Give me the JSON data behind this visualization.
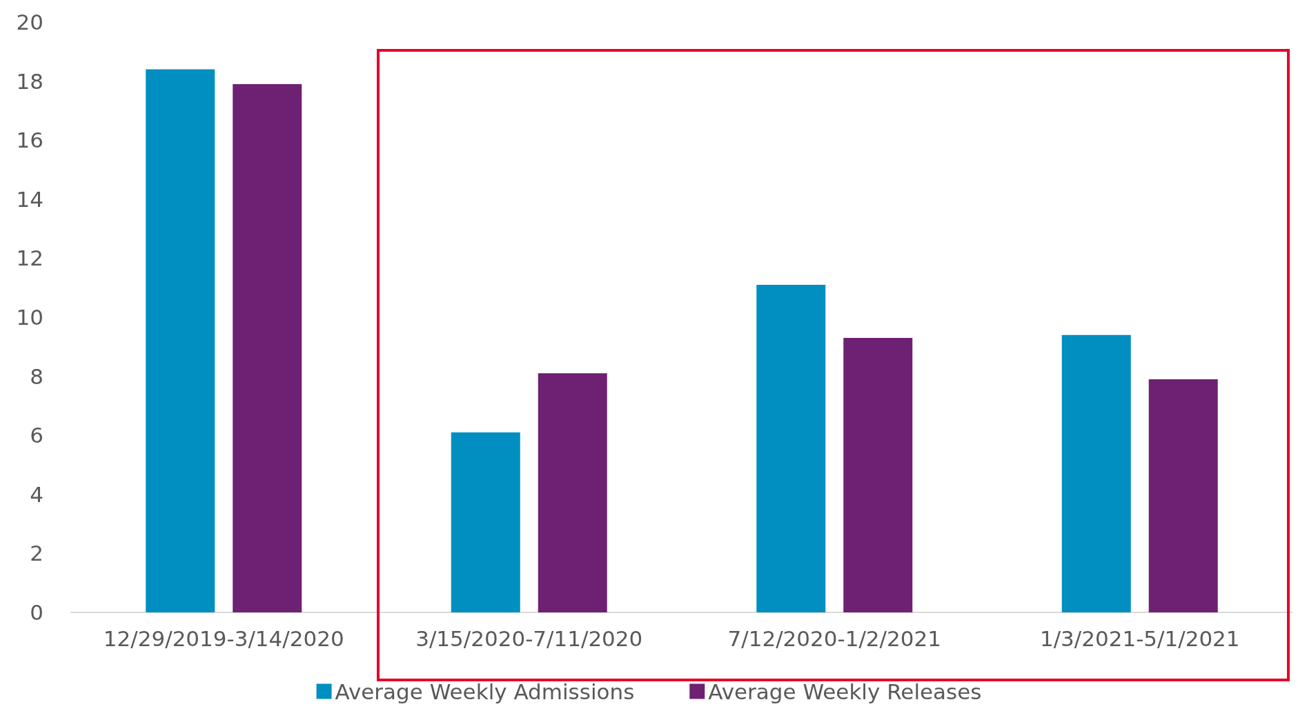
{
  "chart_data": {
    "type": "bar",
    "categories": [
      "12/29/2019-3/14/2020",
      "3/15/2020-7/11/2020",
      "7/12/2020-1/2/2021",
      "1/3/2021-5/1/2021"
    ],
    "series": [
      {
        "name": "Average Weekly Admissions",
        "color": "#008fc0",
        "values": [
          18.4,
          6.1,
          11.1,
          9.4
        ]
      },
      {
        "name": "Average Weekly Releases",
        "color": "#6e2072",
        "values": [
          17.9,
          8.1,
          9.3,
          7.9
        ]
      }
    ],
    "ylim": [
      0,
      20
    ],
    "yticks": [
      0,
      2,
      4,
      6,
      8,
      10,
      12,
      14,
      16,
      18,
      20
    ],
    "grid": false,
    "legend": "bottom"
  }
}
